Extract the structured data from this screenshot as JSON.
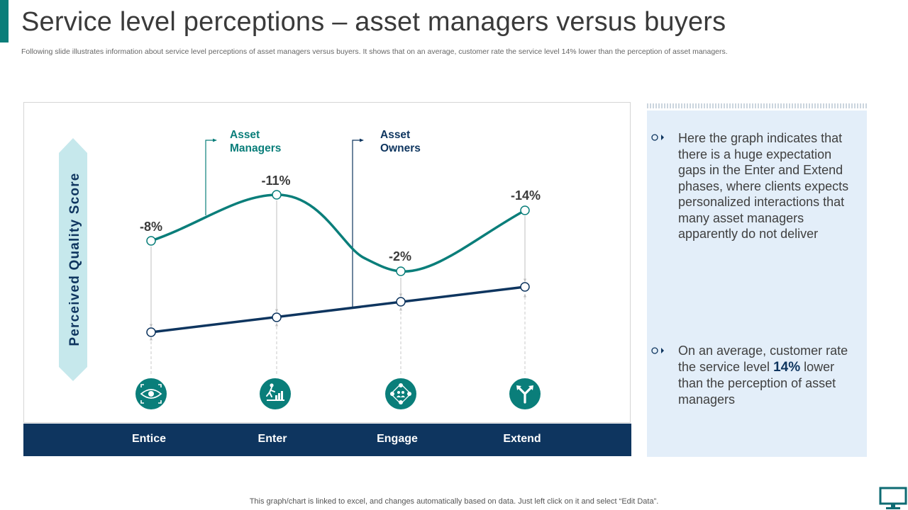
{
  "page": {
    "title": "Service level perceptions – asset managers versus buyers",
    "subtitle": "Following slide illustrates information about service level perceptions of asset managers versus buyers. It shows that on an average, customer rate the service level 14% lower than the perception of asset managers.",
    "footer_note": "This graph/chart is linked to excel,  and changes automatically based on data. Just left click on it and select “Edit Data”."
  },
  "colors": {
    "teal": "#0a7e7a",
    "navy": "#0e355f",
    "arrow_light": "#c6e8ec",
    "panel_bg": "#e3eef9"
  },
  "chart": {
    "y_axis_label": "Perceived Quality Score",
    "series_labels": {
      "asset_managers": "Asset Managers",
      "asset_owners": "Asset Owners"
    },
    "gap_labels": [
      "-8%",
      "-11%",
      "-2%",
      "-14%"
    ],
    "phases": [
      "Entice",
      "Enter",
      "Engage",
      "Extend"
    ],
    "icons": [
      "eye-icon",
      "climbing-stairs-icon",
      "network-people-icon",
      "branch-icon"
    ]
  },
  "info": {
    "point1": "Here the graph indicates that there is a huge expectation gaps in the Enter and Extend phases, where clients expects personalized interactions that many asset managers apparently do not deliver",
    "point2_before": "On an average, customer rate the service level ",
    "point2_highlight": "14%",
    "point2_after": " lower than the perception of asset managers"
  }
}
